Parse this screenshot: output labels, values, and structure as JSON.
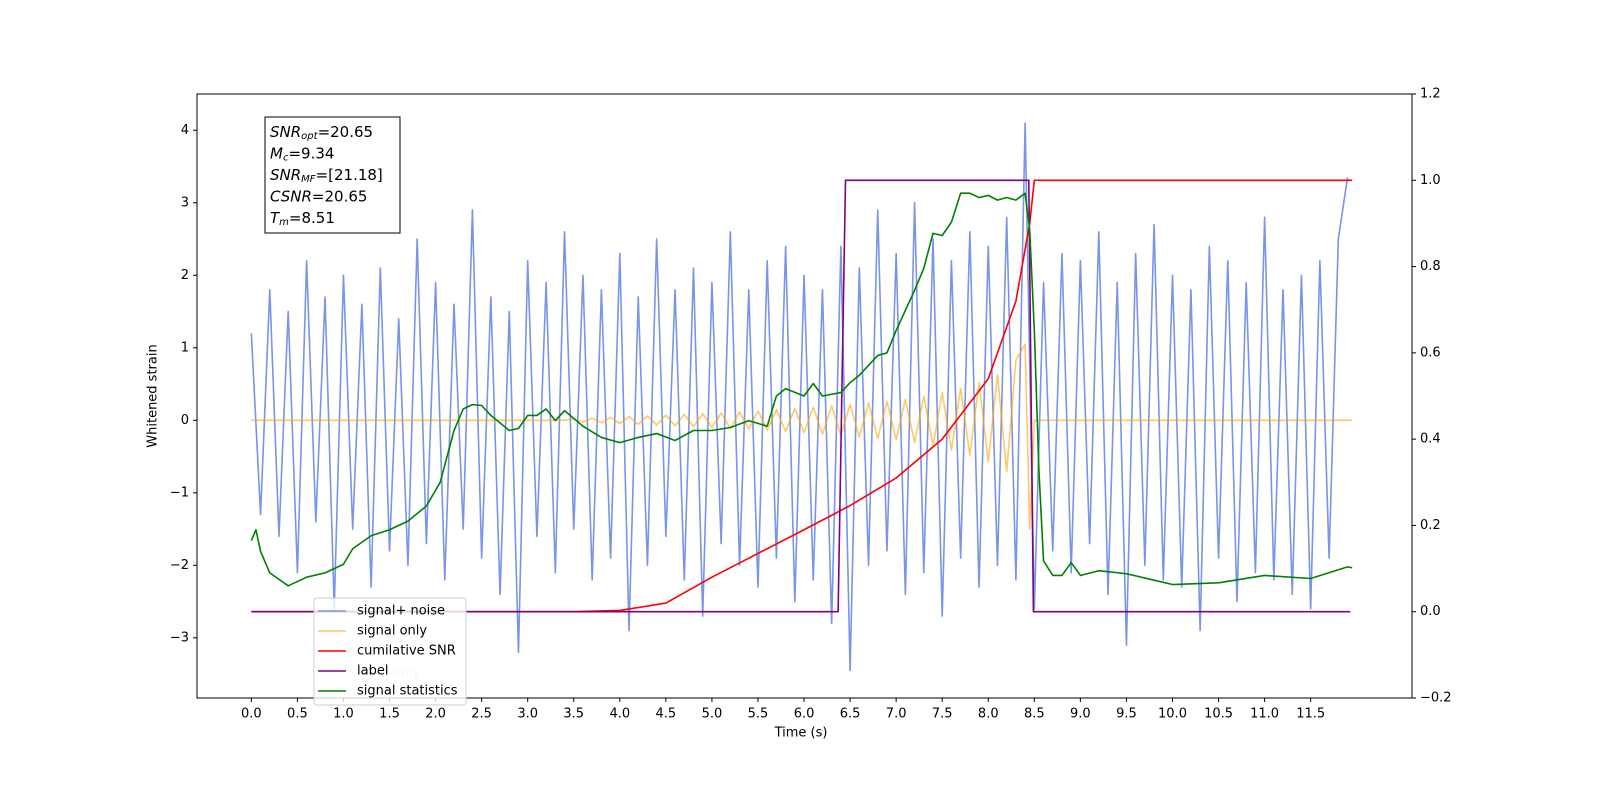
{
  "chart_data": {
    "type": "line",
    "xlabel": "Time (s)",
    "ylabel": "Whitened strain",
    "xlim": [
      -0.59,
      12.6
    ],
    "ylim": [
      -3.83,
      4.5
    ],
    "y2lim": [
      -0.2,
      1.2
    ],
    "xticks": [
      {
        "value": 0,
        "label": "0.0"
      },
      0.5,
      {
        "value": 1,
        "label": "1.0"
      },
      1.5,
      {
        "value": 2,
        "label": "2.0"
      },
      2.5,
      {
        "value": 3,
        "label": "3.0"
      },
      3.5,
      {
        "value": 4,
        "label": "4.0"
      },
      4.5,
      {
        "value": 5,
        "label": "5.0"
      },
      5.5,
      {
        "value": 6,
        "label": "6.0"
      },
      6.5,
      {
        "value": 7,
        "label": "7.0"
      },
      7.5,
      {
        "value": 8,
        "label": "8.0"
      },
      8.5,
      {
        "value": 9,
        "label": "9.0"
      },
      9.5,
      {
        "value": 10,
        "label": "10.0"
      },
      10.5,
      {
        "value": 11,
        "label": "11.0"
      },
      11.5
    ],
    "yticks": [
      {
        "value": -3,
        "label": "−3"
      },
      {
        "value": -2,
        "label": "−2"
      },
      {
        "value": -1,
        "label": "−1"
      },
      0,
      1,
      2,
      3,
      4
    ],
    "y2ticks": [
      {
        "value": -0.2,
        "label": "−0.2"
      },
      {
        "value": 0,
        "label": "0.0"
      },
      0.2,
      0.4,
      0.6,
      0.8,
      {
        "value": 1,
        "label": "1.0"
      },
      1.2
    ],
    "annotation": [
      {
        "name": "SNR",
        "sub": "opt",
        "text": "=20.65"
      },
      {
        "name": "M",
        "sub": "c",
        "text": "=9.34"
      },
      {
        "name": "SNR",
        "sub": "MF",
        "text": "=[21.18]"
      },
      {
        "name": "CSNR",
        "text": "=20.65"
      },
      {
        "name": "T",
        "sub": "m",
        "text": "=8.51"
      }
    ],
    "legend": "lower left",
    "legend_overlay_text": "label only",
    "series": [
      {
        "name": "signal+ noise",
        "color": "#7994e8",
        "axis": "y",
        "x": [
          0.0,
          0.1,
          0.2,
          0.3,
          0.4,
          0.5,
          0.6,
          0.7,
          0.8,
          0.9,
          1.0,
          1.1,
          1.2,
          1.3,
          1.4,
          1.5,
          1.6,
          1.7,
          1.8,
          1.9,
          2.0,
          2.1,
          2.2,
          2.3,
          2.4,
          2.5,
          2.6,
          2.7,
          2.8,
          2.9,
          3.0,
          3.1,
          3.2,
          3.3,
          3.4,
          3.5,
          3.6,
          3.7,
          3.8,
          3.9,
          4.0,
          4.1,
          4.2,
          4.3,
          4.4,
          4.5,
          4.6,
          4.7,
          4.8,
          4.9,
          5.0,
          5.1,
          5.2,
          5.3,
          5.4,
          5.5,
          5.6,
          5.7,
          5.8,
          5.9,
          6.0,
          6.1,
          6.2,
          6.3,
          6.4,
          6.5,
          6.6,
          6.7,
          6.8,
          6.9,
          7.0,
          7.1,
          7.2,
          7.3,
          7.4,
          7.5,
          7.6,
          7.7,
          7.8,
          7.9,
          8.0,
          8.1,
          8.2,
          8.3,
          8.4,
          8.5,
          8.6,
          8.7,
          8.8,
          8.9,
          9.0,
          9.1,
          9.2,
          9.3,
          9.4,
          9.5,
          9.6,
          9.7,
          9.8,
          9.9,
          10.0,
          10.1,
          10.2,
          10.3,
          10.4,
          10.5,
          10.6,
          10.7,
          10.8,
          10.9,
          11.0,
          11.1,
          11.2,
          11.3,
          11.4,
          11.5,
          11.6,
          11.7,
          11.8,
          11.9
        ],
        "values": [
          1.2,
          -1.3,
          1.8,
          -1.6,
          1.5,
          -2.1,
          2.2,
          -1.4,
          1.7,
          -2.6,
          2.0,
          -1.5,
          1.6,
          -2.3,
          2.1,
          -1.8,
          1.4,
          -2.0,
          2.5,
          -1.7,
          1.9,
          -2.2,
          1.6,
          -1.5,
          2.9,
          -1.9,
          1.7,
          -2.4,
          1.5,
          -3.2,
          2.2,
          -1.6,
          1.9,
          -2.1,
          2.6,
          -1.5,
          2.0,
          -2.2,
          1.8,
          -1.9,
          2.3,
          -2.9,
          1.7,
          -2.0,
          2.5,
          -1.6,
          1.8,
          -2.2,
          2.1,
          -2.7,
          1.9,
          -1.7,
          2.6,
          -2.0,
          1.8,
          -2.3,
          2.2,
          -1.9,
          2.4,
          -2.5,
          2.0,
          -2.2,
          1.8,
          -2.8,
          2.4,
          -3.45,
          2.1,
          -2.0,
          2.9,
          -1.8,
          2.3,
          -2.4,
          3.0,
          -2.1,
          2.5,
          -2.7,
          2.2,
          -1.9,
          2.6,
          -2.3,
          2.4,
          -2.0,
          2.8,
          -2.2,
          4.1,
          -2.6,
          1.9,
          -1.8,
          2.3,
          -2.1,
          2.2,
          -1.7,
          2.6,
          -2.4,
          1.9,
          -3.1,
          2.3,
          -2.0,
          2.7,
          -2.2,
          2.0,
          -2.3,
          1.8,
          -2.9,
          2.4,
          -1.9,
          2.2,
          -2.5,
          1.9,
          -2.1,
          2.8,
          -2.2,
          1.8,
          -2.4,
          2.0,
          -2.6,
          2.2,
          -1.9,
          2.5,
          3.35
        ]
      },
      {
        "name": "signal only",
        "color": "#ffa500",
        "axis": "y",
        "x": [
          0,
          3.4,
          3.5,
          3.6,
          3.7,
          3.8,
          3.9,
          4.0,
          4.1,
          4.2,
          4.3,
          4.4,
          4.5,
          4.6,
          4.7,
          4.8,
          4.9,
          5.0,
          5.1,
          5.2,
          5.3,
          5.4,
          5.5,
          5.6,
          5.7,
          5.8,
          5.9,
          6.0,
          6.1,
          6.2,
          6.3,
          6.4,
          6.5,
          6.6,
          6.7,
          6.8,
          6.9,
          7.0,
          7.1,
          7.2,
          7.3,
          7.4,
          7.5,
          7.6,
          7.7,
          7.8,
          7.9,
          8.0,
          8.1,
          8.2,
          8.3,
          8.4,
          8.45,
          8.5,
          11.95
        ],
        "values": [
          0,
          0,
          0.02,
          -0.025,
          0.03,
          -0.035,
          0.04,
          -0.045,
          0.05,
          -0.055,
          0.06,
          -0.065,
          0.07,
          -0.075,
          0.08,
          -0.085,
          0.09,
          -0.095,
          0.1,
          -0.11,
          0.115,
          -0.12,
          0.13,
          -0.14,
          0.15,
          -0.155,
          0.165,
          -0.17,
          0.18,
          -0.19,
          0.2,
          -0.21,
          0.22,
          -0.23,
          0.24,
          -0.25,
          0.26,
          -0.27,
          0.29,
          -0.31,
          0.33,
          -0.35,
          0.38,
          -0.41,
          0.44,
          -0.48,
          0.52,
          -0.57,
          0.63,
          -0.71,
          0.83,
          1.05,
          -1.5,
          0,
          0
        ]
      },
      {
        "name": "cumilative SNR",
        "color": "#ff0000",
        "axis": "y2",
        "x": [
          0,
          3.5,
          4.0,
          4.5,
          5.0,
          5.5,
          6.0,
          6.5,
          7.0,
          7.5,
          8.0,
          8.3,
          8.45,
          8.5,
          11.95
        ],
        "values": [
          0,
          0,
          0.003,
          0.02,
          0.08,
          0.135,
          0.19,
          0.246,
          0.31,
          0.4,
          0.54,
          0.72,
          0.9,
          1.0,
          1.0
        ]
      },
      {
        "name": "label",
        "color": "#800080",
        "axis": "y2",
        "x": [
          0,
          6.37,
          6.45,
          8.44,
          8.49,
          11.93
        ],
        "values": [
          0,
          0,
          1,
          1,
          0,
          0
        ]
      },
      {
        "name": "signal statistics",
        "color": "#008000",
        "axis": "y2",
        "x": [
          0.0,
          0.05,
          0.1,
          0.2,
          0.4,
          0.6,
          0.8,
          1.0,
          1.1,
          1.3,
          1.5,
          1.7,
          1.9,
          2.05,
          2.2,
          2.3,
          2.4,
          2.5,
          2.6,
          2.8,
          2.9,
          3.0,
          3.1,
          3.2,
          3.3,
          3.4,
          3.6,
          3.8,
          4.0,
          4.2,
          4.4,
          4.6,
          4.8,
          5.0,
          5.2,
          5.4,
          5.6,
          5.7,
          5.8,
          6.0,
          6.1,
          6.2,
          6.4,
          6.5,
          6.6,
          6.8,
          6.9,
          7.0,
          7.2,
          7.3,
          7.4,
          7.5,
          7.6,
          7.7,
          7.8,
          7.9,
          8.0,
          8.1,
          8.2,
          8.3,
          8.4,
          8.45,
          8.5,
          8.55,
          8.6,
          8.7,
          8.8,
          8.9,
          9.0,
          9.2,
          9.5,
          10.0,
          10.5,
          11.0,
          11.5,
          11.9,
          11.95
        ],
        "values": [
          0.165,
          0.19,
          0.14,
          0.09,
          0.06,
          0.08,
          0.09,
          0.11,
          0.146,
          0.176,
          0.19,
          0.21,
          0.245,
          0.3,
          0.42,
          0.47,
          0.48,
          0.478,
          0.455,
          0.42,
          0.425,
          0.455,
          0.455,
          0.47,
          0.443,
          0.466,
          0.43,
          0.404,
          0.392,
          0.404,
          0.413,
          0.397,
          0.42,
          0.42,
          0.427,
          0.443,
          0.43,
          0.5,
          0.517,
          0.5,
          0.529,
          0.5,
          0.508,
          0.531,
          0.548,
          0.594,
          0.6,
          0.652,
          0.745,
          0.796,
          0.877,
          0.872,
          0.903,
          0.97,
          0.97,
          0.96,
          0.965,
          0.954,
          0.96,
          0.954,
          0.97,
          0.884,
          0.652,
          0.327,
          0.118,
          0.084,
          0.084,
          0.114,
          0.084,
          0.095,
          0.088,
          0.063,
          0.067,
          0.084,
          0.077,
          0.104,
          0.102
        ]
      }
    ]
  }
}
